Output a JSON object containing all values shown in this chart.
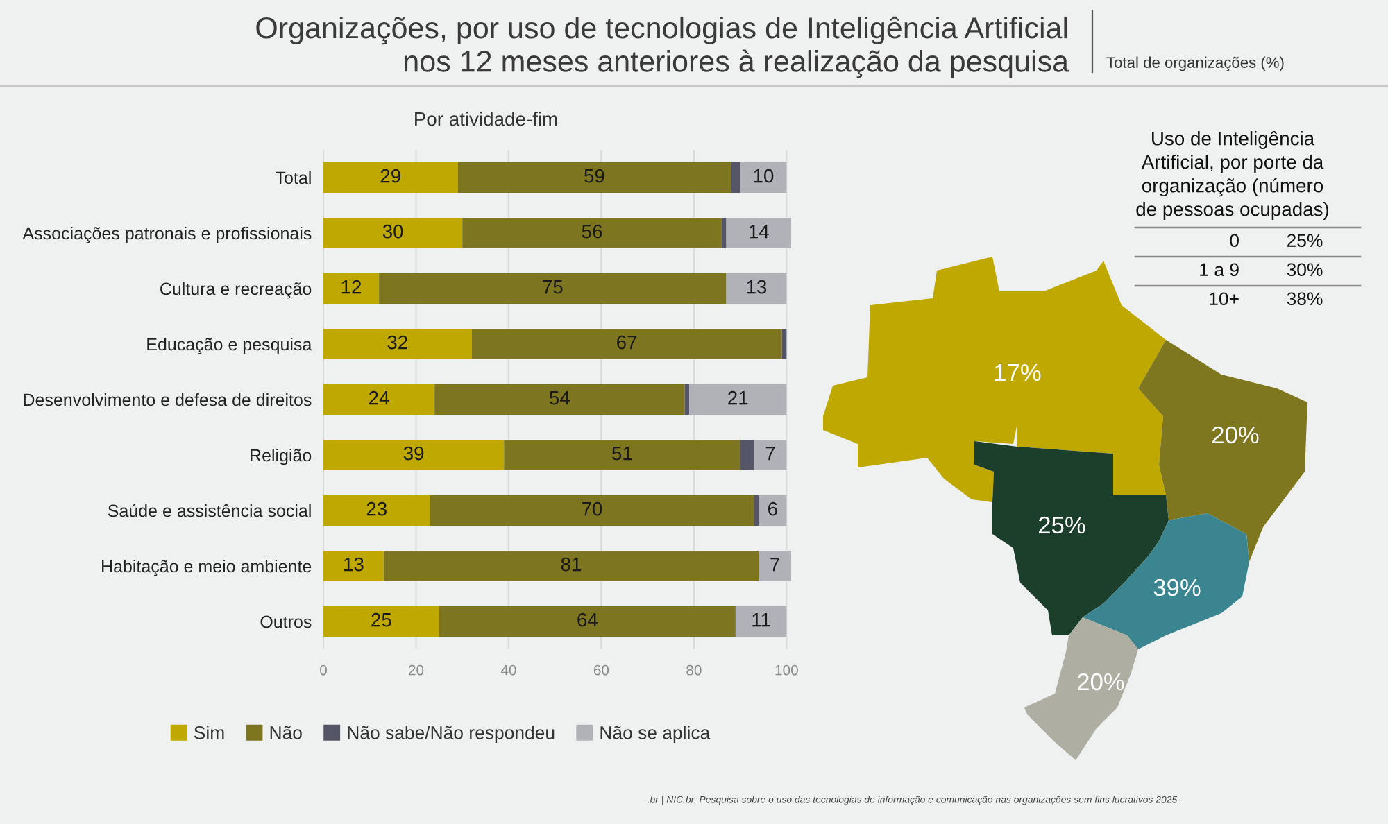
{
  "chart_data": [
    {
      "type": "other",
      "title": "Organizações, por uso de tecnologias de Inteligência Artificial nos 12 meses anteriores à realização da pesquisa",
      "subtitle": "Total de organizações (%)",
      "annotations": [
        ".br | NIC.br. Pesquisa sobre o uso das tecnologias de informação e comunicação nas organizações sem fins lucrativos 2025."
      ]
    },
    {
      "type": "bar",
      "title": "Por atividade-fim",
      "orientation": "horizontal",
      "stacked": true,
      "categories": [
        "Total",
        "Associações patronais e profissionais",
        "Cultura e recreação",
        "Educação e pesquisa",
        "Desenvolvimento e defesa de direitos",
        "Religião",
        "Saúde e assistência social",
        "Habitação e meio ambiente",
        "Outros"
      ],
      "series": [
        {
          "name": "Sim",
          "color": "#bfa900",
          "values": [
            29,
            30,
            12,
            32,
            24,
            39,
            23,
            13,
            25
          ],
          "value_labels": [
            "29",
            "30",
            "12",
            "32",
            "24",
            "39",
            "23",
            "13",
            "25"
          ]
        },
        {
          "name": "Não",
          "color": "#7d7520",
          "values": [
            59,
            56,
            75,
            67,
            54,
            51,
            70,
            81,
            64
          ],
          "value_labels": [
            "59",
            "56",
            "75",
            "67",
            "54",
            "51",
            "70",
            "81",
            "64"
          ]
        },
        {
          "name": "Não sabe/Não respondeu",
          "color": "#545566",
          "values": [
            2,
            1,
            0,
            1,
            1,
            3,
            1,
            0,
            0
          ],
          "value_labels": [
            null,
            null,
            null,
            null,
            null,
            null,
            null,
            null,
            null
          ]
        },
        {
          "name": "Não se aplica",
          "color": "#b1b2b8",
          "values": [
            10,
            14,
            13,
            0,
            21,
            7,
            6,
            7,
            11
          ],
          "value_labels": [
            "10",
            "14",
            "13",
            null,
            "21",
            "7",
            "6",
            "7",
            "11"
          ]
        }
      ],
      "xlim": [
        0,
        101
      ],
      "xticks": [
        0,
        20,
        40,
        60,
        80,
        100
      ],
      "grid": "x",
      "legend": "bottom"
    },
    {
      "type": "other",
      "categories": [
        null,
        null,
        null,
        null,
        null
      ],
      "value_labels": [
        "17%",
        "20%",
        "25%",
        "39%",
        "20%"
      ],
      "colors": [
        "#bfa900",
        "#7e7720",
        "#1c3f2b",
        "#3a8590",
        "#aeafa2"
      ]
    },
    {
      "type": "other",
      "title": "Uso de Inteligência Artificial, por porte da organização (número de pessoas ocupadas)",
      "categories": [
        "0",
        "1 a 9",
        "10+"
      ],
      "value_labels": [
        "25%",
        "30%",
        "38%"
      ]
    }
  ]
}
